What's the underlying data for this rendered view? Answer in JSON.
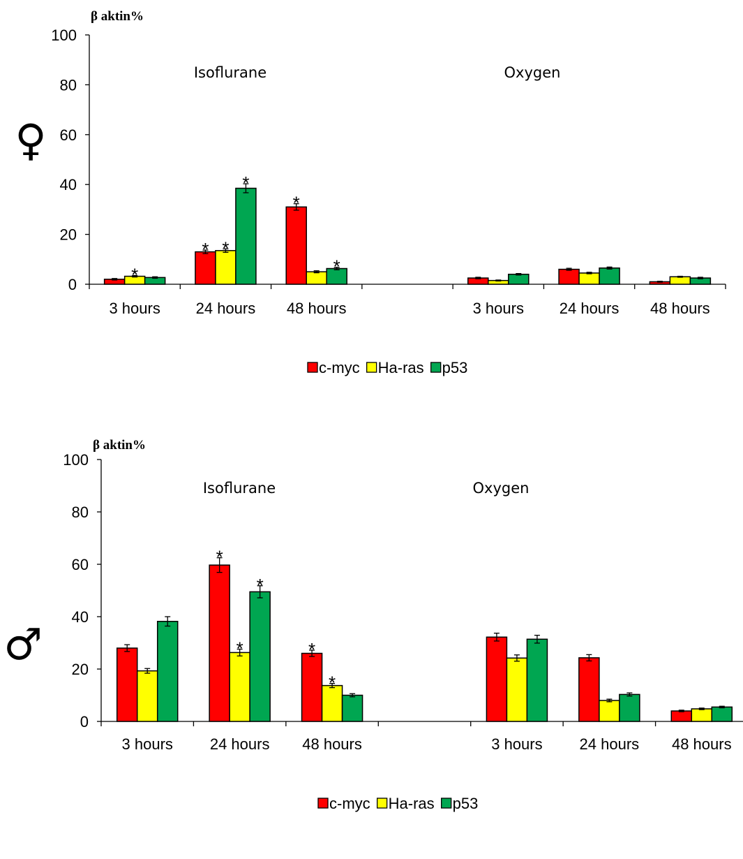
{
  "legend": [
    "c-myc",
    "Ha-ras",
    "p53"
  ],
  "colors": {
    "c-myc": "#ff0000",
    "Ha-ras": "#ffff00",
    "p53": "#00a651"
  },
  "chart_data": [
    {
      "type": "bar",
      "symbol": "♀",
      "ylabel": "β aktin%",
      "ylim": [
        0,
        100
      ],
      "yticks": [
        0,
        20,
        40,
        60,
        80,
        100
      ],
      "ytick_labels": [
        "0",
        "20",
        "40",
        "60",
        "80",
        "100"
      ],
      "group_labels": [
        "Isoflurane",
        "Oxygen"
      ],
      "categories": [
        "3 hours",
        "24 hours",
        "48 hours",
        "",
        "3 hours",
        "24 hours",
        "48 hours"
      ],
      "series": [
        {
          "name": "c-myc",
          "values": [
            2,
            13,
            31,
            null,
            2.5,
            6,
            1
          ],
          "errors": [
            0.3,
            0.7,
            1.3,
            null,
            0.3,
            0.4,
            0.2
          ]
        },
        {
          "name": "Ha-ras",
          "values": [
            3.2,
            13.5,
            5,
            null,
            1.5,
            4.5,
            3
          ],
          "errors": [
            0.3,
            0.7,
            0.4,
            null,
            0.2,
            0.3,
            0.2
          ]
        },
        {
          "name": "p53",
          "values": [
            2.7,
            38.5,
            6.3,
            null,
            4,
            6.5,
            2.5
          ],
          "errors": [
            0.3,
            1.8,
            0.5,
            null,
            0.3,
            0.4,
            0.3
          ]
        }
      ],
      "significant": [
        {
          "category": 0,
          "series": 1
        },
        {
          "category": 1,
          "series": 0
        },
        {
          "category": 1,
          "series": 1
        },
        {
          "category": 1,
          "series": 2
        },
        {
          "category": 2,
          "series": 0
        },
        {
          "category": 2,
          "series": 2
        }
      ]
    },
    {
      "type": "bar",
      "symbol": "♂",
      "ylabel": "β aktin%",
      "ylim": [
        0,
        100
      ],
      "yticks": [
        0,
        20,
        40,
        60,
        80,
        100
      ],
      "ytick_labels": [
        "0",
        "20",
        "40",
        "60",
        "80",
        "100"
      ],
      "group_labels": [
        "Isoflurane",
        "Oxygen"
      ],
      "categories": [
        "3 hours",
        "24 hours",
        "48 hours",
        "",
        "3 hours",
        "24 hours",
        "48 hours"
      ],
      "series": [
        {
          "name": "c-myc",
          "values": [
            28,
            59.7,
            26,
            null,
            32.2,
            24.3,
            4
          ],
          "errors": [
            1.3,
            2.8,
            1.2,
            null,
            1.5,
            1.2,
            0.3
          ]
        },
        {
          "name": "Ha-ras",
          "values": [
            19.3,
            26.3,
            13.7,
            null,
            24.2,
            8,
            4.8
          ],
          "errors": [
            0.9,
            1.3,
            0.8,
            null,
            1.2,
            0.5,
            0.3
          ]
        },
        {
          "name": "p53",
          "values": [
            38.2,
            49.5,
            10,
            null,
            31.4,
            10.3,
            5.5
          ],
          "errors": [
            1.8,
            2.3,
            0.6,
            null,
            1.5,
            0.6,
            0.3
          ]
        }
      ],
      "significant": [
        {
          "category": 1,
          "series": 0
        },
        {
          "category": 1,
          "series": 1
        },
        {
          "category": 1,
          "series": 2
        },
        {
          "category": 2,
          "series": 0
        },
        {
          "category": 2,
          "series": 1
        }
      ]
    }
  ]
}
